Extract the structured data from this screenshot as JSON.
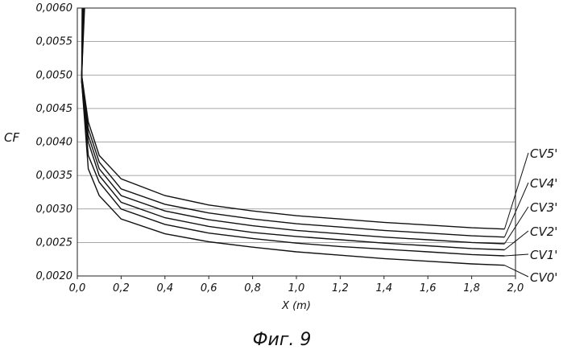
{
  "chart_data": {
    "type": "line",
    "title": "",
    "xlabel": "X (m)",
    "ylabel": "CF",
    "xlim": [
      0.0,
      2.0
    ],
    "ylim": [
      0.002,
      0.006
    ],
    "grid": true,
    "x_ticks": [
      "0,0",
      "0,2",
      "0,4",
      "0,6",
      "0,8",
      "1,0",
      "1,2",
      "1,4",
      "1,6",
      "1,8",
      "2,0"
    ],
    "x_tick_values": [
      0.0,
      0.2,
      0.4,
      0.6,
      0.8,
      1.0,
      1.2,
      1.4,
      1.6,
      1.8,
      2.0
    ],
    "y_ticks": [
      "0,0020",
      "0,0025",
      "0,0030",
      "0,0035",
      "0,0040",
      "0,0045",
      "0,0050",
      "0,0055",
      "0,0060"
    ],
    "y_tick_values": [
      0.002,
      0.0025,
      0.003,
      0.0035,
      0.004,
      0.0045,
      0.005,
      0.0055,
      0.006
    ],
    "x": [
      0.02,
      0.05,
      0.1,
      0.2,
      0.4,
      0.6,
      0.8,
      1.0,
      1.2,
      1.4,
      1.6,
      1.8,
      1.95
    ],
    "series": [
      {
        "name": "CV0'",
        "values": [
          0.0049,
          0.0036,
          0.0032,
          0.00285,
          0.00263,
          0.00251,
          0.00243,
          0.00236,
          0.00231,
          0.00226,
          0.00222,
          0.00218,
          0.00216
        ]
      },
      {
        "name": "CV1'",
        "values": [
          0.0049,
          0.0038,
          0.0034,
          0.003,
          0.00277,
          0.00264,
          0.00256,
          0.00249,
          0.00244,
          0.0024,
          0.00236,
          0.00232,
          0.0023
        ]
      },
      {
        "name": "CV2'",
        "values": [
          0.0049,
          0.004,
          0.0035,
          0.0031,
          0.00287,
          0.00274,
          0.00265,
          0.00259,
          0.00254,
          0.00249,
          0.00245,
          0.00241,
          0.00239
        ]
      },
      {
        "name": "CV3'",
        "values": [
          0.0049,
          0.0041,
          0.0036,
          0.0032,
          0.00297,
          0.00284,
          0.00275,
          0.00268,
          0.00263,
          0.00258,
          0.00254,
          0.0025,
          0.00248
        ]
      },
      {
        "name": "CV4'",
        "values": [
          0.005,
          0.0042,
          0.0037,
          0.0033,
          0.00307,
          0.00294,
          0.00285,
          0.00278,
          0.00273,
          0.00268,
          0.00264,
          0.0026,
          0.00258
        ]
      },
      {
        "name": "CV5'",
        "values": [
          0.005,
          0.0043,
          0.0038,
          0.00345,
          0.0032,
          0.00306,
          0.00297,
          0.0029,
          0.00285,
          0.0028,
          0.00276,
          0.00272,
          0.0027
        ]
      }
    ],
    "caption": "Фиг. 9"
  }
}
